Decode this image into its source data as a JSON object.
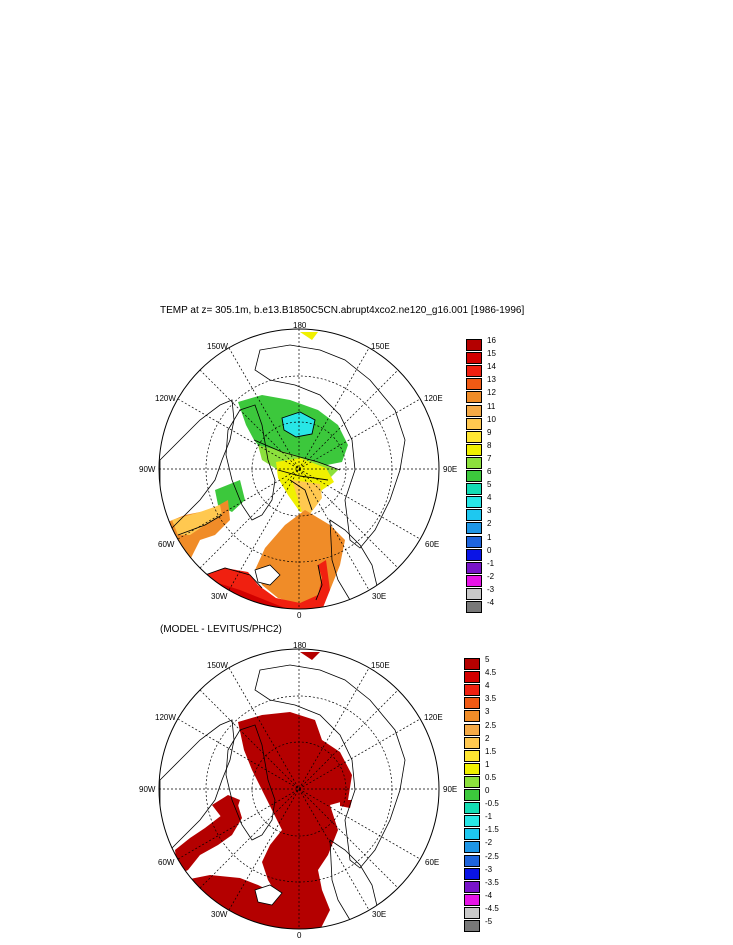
{
  "figure": {
    "title": "TEMP at z= 305.1m, b.e13.B1850C5CN.abrupt4xco2.ne120_g16.001 [1986-1996]",
    "subtitle": "(MODEL - LEVITUS/PHC2)"
  },
  "map_labels": {
    "top": "180",
    "bottom": "0",
    "left": "90W",
    "right": "90E",
    "ul_a": "150W",
    "ul_b": "120W",
    "ur_a": "150E",
    "ur_b": "120E",
    "ll_a": "60W",
    "ll_b": "30W",
    "lr_a": "60E",
    "lr_b": "30E"
  },
  "colorbar1": {
    "labels": [
      "16",
      "15",
      "14",
      "13",
      "12",
      "11",
      "10",
      "9",
      "8",
      "7",
      "6",
      "5",
      "4",
      "3",
      "2",
      "1",
      "0",
      "-1",
      "-2",
      "-3",
      "-4"
    ],
    "colors": [
      "#b40000",
      "#d20000",
      "#f02010",
      "#f05a14",
      "#f08c28",
      "#f5aa46",
      "#ffc850",
      "#ffe632",
      "#f0f000",
      "#8ce03c",
      "#3cc83c",
      "#14dcb4",
      "#28e6e6",
      "#1ec8f0",
      "#1e96e6",
      "#1e64dc",
      "#0a14e6",
      "#7814c8",
      "#e614e6",
      "#c8c8c8",
      "#787878"
    ]
  },
  "colorbar2": {
    "labels": [
      "5",
      "4.5",
      "4",
      "3.5",
      "3",
      "2.5",
      "2",
      "1.5",
      "1",
      "0.5",
      "0",
      "-0.5",
      "-1",
      "-1.5",
      "-2",
      "-2.5",
      "-3",
      "-3.5",
      "-4",
      "-4.5",
      "-5"
    ],
    "colors": [
      "#b40000",
      "#d20000",
      "#f02010",
      "#f05a14",
      "#f08c28",
      "#f5aa46",
      "#ffc850",
      "#ffe632",
      "#f0f000",
      "#8ce03c",
      "#3cc83c",
      "#14dcb4",
      "#28e6e6",
      "#1ec8f0",
      "#1e96e6",
      "#1e64dc",
      "#0a14e6",
      "#7814c8",
      "#e614e6",
      "#c8c8c8",
      "#787878"
    ]
  }
}
